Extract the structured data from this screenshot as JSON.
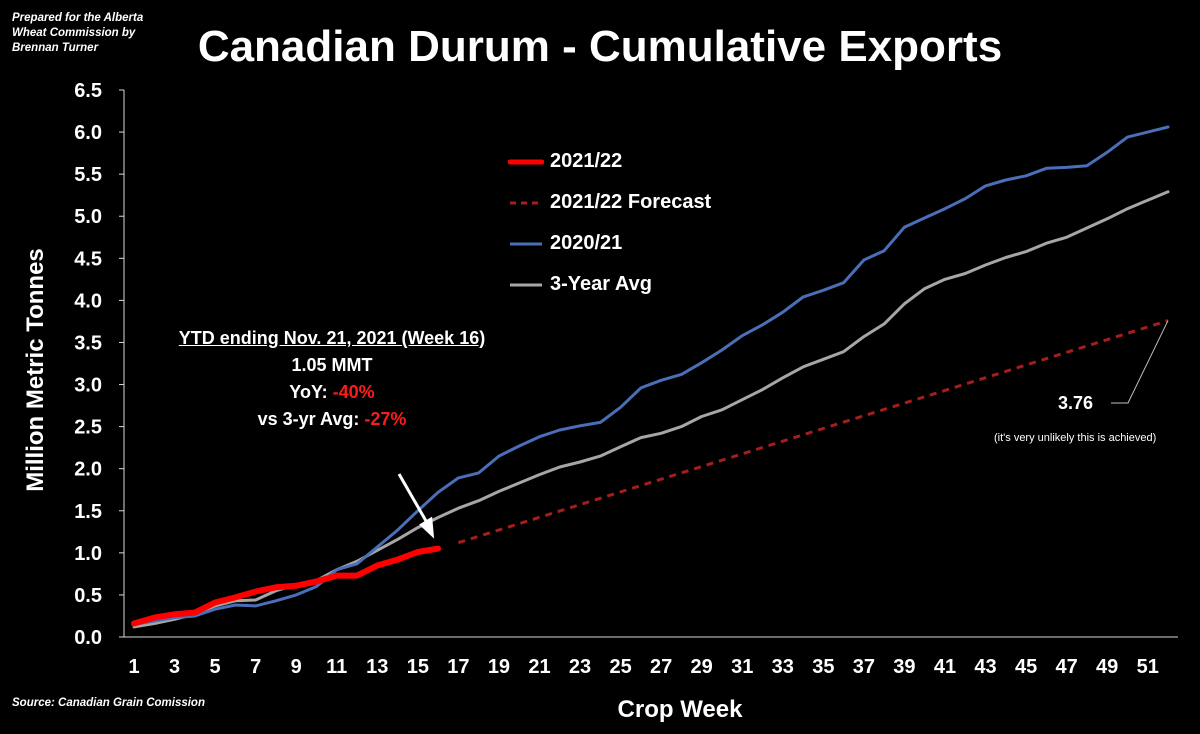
{
  "header": {
    "credit": "Prepared for the Alberta\nWheat Commission by\nBrennan Turner",
    "title": "Canadian Durum - Cumulative Exports"
  },
  "footer": {
    "source": "Source: Canadian Grain Comission"
  },
  "annotation": {
    "heading": "YTD ending Nov. 21, 2021 (Week 16)",
    "total": "1.05 MMT",
    "yoy_label": "YoY: ",
    "yoy_value": "-40%",
    "avg_label": "vs 3-yr Avg: ",
    "avg_value": "-27%",
    "forecast_value": "3.76",
    "forecast_note": "(it's very unlikely this is achieved)"
  },
  "colors": {
    "s2021_22": "#ff0000",
    "forecast": "#a51d1d",
    "s2020_21": "#4a6fb8",
    "avg3": "#a6a6a6"
  },
  "chart_data": {
    "type": "line",
    "title": "Canadian Durum - Cumulative Exports",
    "xlabel": "Crop Week",
    "ylabel": "Million Metric Tonnes",
    "xlim": [
      1,
      52
    ],
    "ylim": [
      0,
      6.5
    ],
    "yticks": [
      "0.0",
      "0.5",
      "1.0",
      "1.5",
      "2.0",
      "2.5",
      "3.0",
      "3.5",
      "4.0",
      "4.5",
      "5.0",
      "5.5",
      "6.0",
      "6.5"
    ],
    "xticks": [
      "1",
      "3",
      "5",
      "7",
      "9",
      "11",
      "13",
      "15",
      "17",
      "19",
      "21",
      "23",
      "25",
      "27",
      "29",
      "31",
      "33",
      "35",
      "37",
      "39",
      "41",
      "43",
      "45",
      "47",
      "49",
      "51"
    ],
    "grid": false,
    "legend_position": "upper-center",
    "series": [
      {
        "name": "2021/22",
        "style": "solid-thick",
        "x": [
          1,
          2,
          3,
          4,
          5,
          6,
          7,
          8,
          9,
          10,
          11,
          12,
          13,
          14,
          15,
          16
        ],
        "values": [
          0.16,
          0.23,
          0.27,
          0.29,
          0.41,
          0.47,
          0.54,
          0.59,
          0.61,
          0.66,
          0.73,
          0.73,
          0.85,
          0.92,
          1.01,
          1.05
        ]
      },
      {
        "name": "2021/22 Forecast",
        "style": "dashed",
        "x": [
          17,
          52
        ],
        "values": [
          1.12,
          3.76
        ]
      },
      {
        "name": "2020/21",
        "style": "solid",
        "x": [
          1,
          2,
          3,
          4,
          5,
          6,
          7,
          8,
          9,
          10,
          11,
          12,
          13,
          14,
          15,
          16,
          17,
          18,
          19,
          20,
          21,
          22,
          23,
          24,
          25,
          26,
          27,
          28,
          29,
          30,
          31,
          32,
          33,
          34,
          35,
          36,
          37,
          38,
          39,
          40,
          41,
          42,
          43,
          44,
          45,
          46,
          47,
          48,
          49,
          50,
          51,
          52
        ],
        "values": [
          0.15,
          0.19,
          0.23,
          0.25,
          0.33,
          0.38,
          0.37,
          0.43,
          0.5,
          0.6,
          0.8,
          0.87,
          1.07,
          1.27,
          1.5,
          1.72,
          1.89,
          1.95,
          2.15,
          2.27,
          2.38,
          2.46,
          2.51,
          2.55,
          2.73,
          2.96,
          3.05,
          3.12,
          3.26,
          3.41,
          3.58,
          3.71,
          3.86,
          4.04,
          4.12,
          4.21,
          4.48,
          4.59,
          4.87,
          4.98,
          5.09,
          5.21,
          5.36,
          5.43,
          5.48,
          5.57,
          5.58,
          5.6,
          5.76,
          5.94,
          6.0,
          6.06
        ]
      },
      {
        "name": "3-Year Avg",
        "style": "solid",
        "x": [
          1,
          2,
          3,
          4,
          5,
          6,
          7,
          8,
          9,
          10,
          11,
          12,
          13,
          14,
          15,
          16,
          17,
          18,
          19,
          20,
          21,
          22,
          23,
          24,
          25,
          26,
          27,
          28,
          29,
          30,
          31,
          32,
          33,
          34,
          35,
          36,
          37,
          38,
          39,
          40,
          41,
          42,
          43,
          44,
          45,
          46,
          47,
          48,
          49,
          50,
          51,
          52
        ],
        "values": [
          0.12,
          0.16,
          0.21,
          0.27,
          0.37,
          0.43,
          0.44,
          0.55,
          0.62,
          0.67,
          0.8,
          0.9,
          1.03,
          1.16,
          1.3,
          1.42,
          1.53,
          1.62,
          1.73,
          1.83,
          1.93,
          2.02,
          2.08,
          2.15,
          2.26,
          2.37,
          2.42,
          2.5,
          2.62,
          2.7,
          2.82,
          2.94,
          3.08,
          3.21,
          3.3,
          3.39,
          3.57,
          3.72,
          3.96,
          4.14,
          4.25,
          4.32,
          4.42,
          4.51,
          4.58,
          4.68,
          4.75,
          4.86,
          4.97,
          5.09,
          5.19,
          5.29
        ]
      }
    ]
  }
}
